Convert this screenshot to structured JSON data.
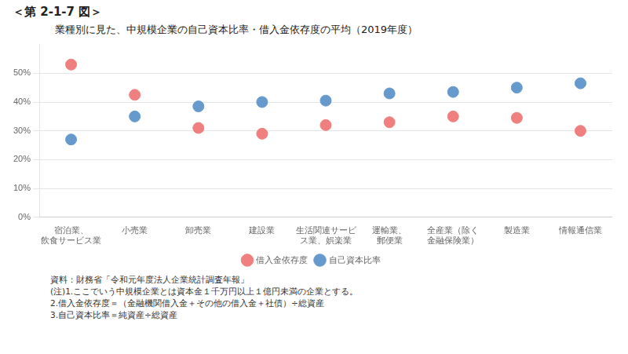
{
  "chart_data": {
    "type": "scatter",
    "header": "＜第 2-1-7 図＞",
    "title": "業種別に見た、中規模企業の自己資本比率・借入金依存度の平均（2019年度）",
    "categories": [
      "宿泊業、\n飲食サービス業",
      "小売業",
      "卸売業",
      "建設業",
      "生活関連サービ\nス業、娯楽業",
      "運輸業、\n郵便業",
      "全産業（除く\n金融保険業）",
      "製造業",
      "情報通信業"
    ],
    "series": [
      {
        "name": "借入金依存度",
        "color": "#F08080",
        "values": [
          53,
          42.5,
          31,
          29,
          32,
          33,
          35,
          34.5,
          30
        ]
      },
      {
        "name": "自己資本比率",
        "color": "#6699CC",
        "values": [
          27,
          35,
          38.5,
          40,
          40.5,
          43,
          43.5,
          45,
          46.5
        ]
      }
    ],
    "ylim": [
      0,
      60
    ],
    "yticks": [
      {
        "value": 0,
        "label": "0%"
      },
      {
        "value": 10,
        "label": "10%"
      },
      {
        "value": 20,
        "label": "20%"
      },
      {
        "value": 30,
        "label": "30%"
      },
      {
        "value": 40,
        "label": "40%"
      },
      {
        "value": 50,
        "label": "50%"
      }
    ],
    "grid": true,
    "legend": "bottom",
    "footnotes": [
      "資料：財務省「令和元年度法人企業統計調査年報」",
      "(注)1.ここでいう中規模企業とは資本金１千万円以上１億円未満の企業とする。",
      "2.借入金依存度＝（金融機関借入金＋その他の借入金＋社債）÷総資産",
      "3.自己資本比率＝純資産÷総資産"
    ]
  }
}
